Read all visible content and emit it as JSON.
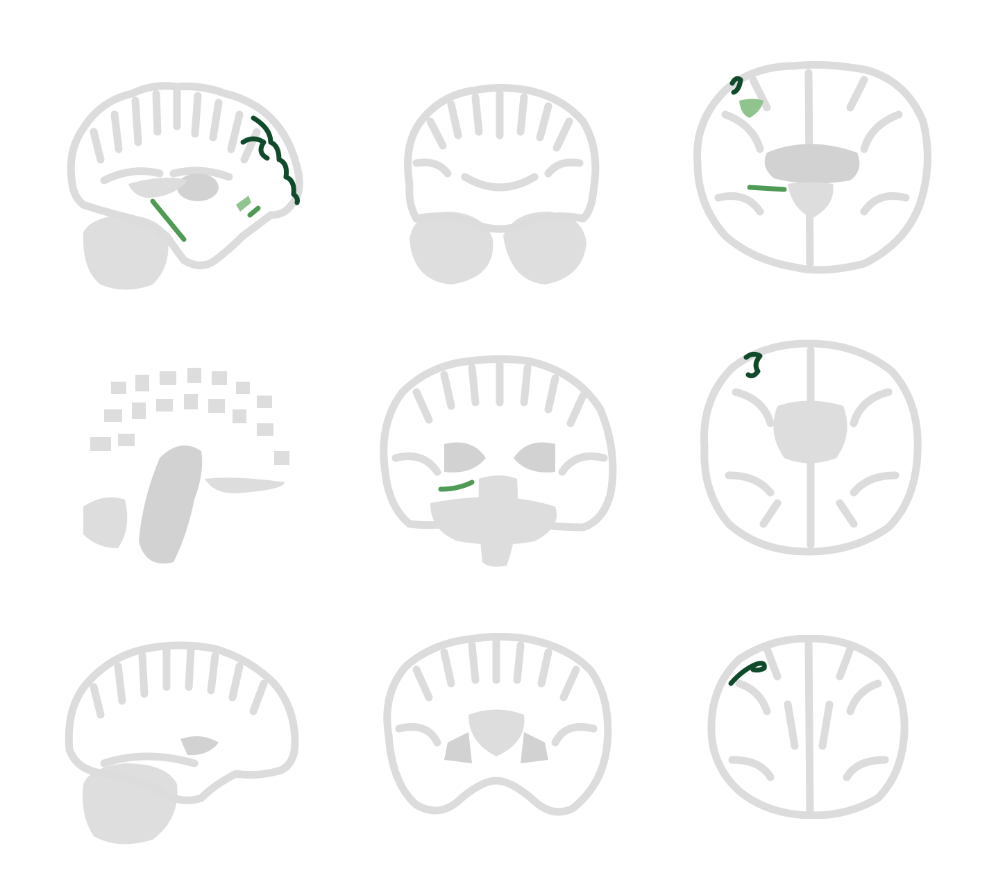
{
  "figure": {
    "rows": 3,
    "columns": 3,
    "views": [
      "sagittal",
      "coronal",
      "axial"
    ],
    "colors": {
      "background": "#ffffff",
      "cortex": "#dcdcdc",
      "subcortical": "#d2d2d2",
      "highlight_dark": "#0f4a2a",
      "highlight_mid": "#4f9a55",
      "highlight_light": "#8fc48e"
    }
  }
}
